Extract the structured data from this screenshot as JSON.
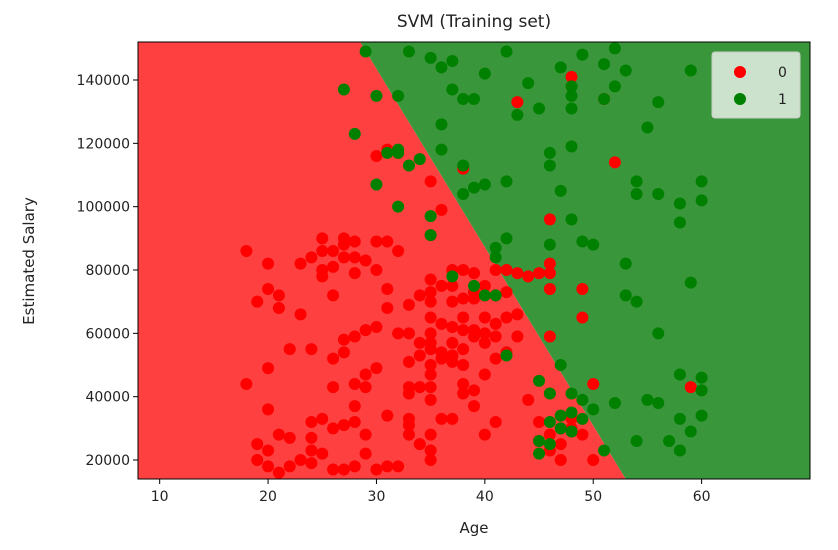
{
  "chart_data": {
    "type": "scatter",
    "title": "SVM (Training set)",
    "xlabel": "Age",
    "ylabel": "Estimated Salary",
    "xlim": [
      8,
      70
    ],
    "ylim": [
      14000,
      152000
    ],
    "xticks": [
      10,
      20,
      30,
      40,
      50,
      60
    ],
    "yticks": [
      20000,
      40000,
      60000,
      80000,
      100000,
      120000,
      140000
    ],
    "grid": false,
    "legend_position": "top-right",
    "decision_regions": {
      "classes": [
        "0",
        "1"
      ],
      "colors": [
        "#ff4040",
        "#3a963a"
      ],
      "boundary": [
        [
          28.5,
          152000
        ],
        [
          53,
          14000
        ]
      ]
    },
    "series": [
      {
        "name": "0",
        "color": "#ff0000",
        "points": [
          [
            18,
            86000
          ],
          [
            18,
            44000
          ],
          [
            19,
            70000
          ],
          [
            19,
            25000
          ],
          [
            19,
            20000
          ],
          [
            20,
            82000
          ],
          [
            20,
            74000
          ],
          [
            20,
            49000
          ],
          [
            20,
            36000
          ],
          [
            20,
            23000
          ],
          [
            20,
            18000
          ],
          [
            21,
            72000
          ],
          [
            21,
            68000
          ],
          [
            21,
            28000
          ],
          [
            21,
            16000
          ],
          [
            22,
            55000
          ],
          [
            22,
            27000
          ],
          [
            22,
            18000
          ],
          [
            23,
            82000
          ],
          [
            23,
            66000
          ],
          [
            23,
            20000
          ],
          [
            24,
            84000
          ],
          [
            24,
            55000
          ],
          [
            24,
            32000
          ],
          [
            24,
            27000
          ],
          [
            24,
            23000
          ],
          [
            24,
            19000
          ],
          [
            25,
            90000
          ],
          [
            25,
            86000
          ],
          [
            25,
            80000
          ],
          [
            25,
            78000
          ],
          [
            25,
            33000
          ],
          [
            25,
            22000
          ],
          [
            26,
            86000
          ],
          [
            26,
            81000
          ],
          [
            26,
            72000
          ],
          [
            26,
            52000
          ],
          [
            26,
            43000
          ],
          [
            26,
            30000
          ],
          [
            26,
            17000
          ],
          [
            27,
            90000
          ],
          [
            27,
            88000
          ],
          [
            27,
            84000
          ],
          [
            27,
            58000
          ],
          [
            27,
            54000
          ],
          [
            27,
            31000
          ],
          [
            27,
            17000
          ],
          [
            28,
            89000
          ],
          [
            28,
            79000
          ],
          [
            28,
            84000
          ],
          [
            28,
            59000
          ],
          [
            28,
            44000
          ],
          [
            28,
            37000
          ],
          [
            28,
            32000
          ],
          [
            28,
            18000
          ],
          [
            29,
            83000
          ],
          [
            29,
            61000
          ],
          [
            29,
            47000
          ],
          [
            29,
            43000
          ],
          [
            29,
            28000
          ],
          [
            29,
            22000
          ],
          [
            30,
            89000
          ],
          [
            30,
            80000
          ],
          [
            30,
            62000
          ],
          [
            30,
            49000
          ],
          [
            30,
            116000
          ],
          [
            30,
            17000
          ],
          [
            31,
            118000
          ],
          [
            31,
            89000
          ],
          [
            31,
            74000
          ],
          [
            31,
            68000
          ],
          [
            31,
            34000
          ],
          [
            31,
            18000
          ],
          [
            32,
            117000
          ],
          [
            32,
            86000
          ],
          [
            32,
            60000
          ],
          [
            32,
            18000
          ],
          [
            33,
            69000
          ],
          [
            33,
            60000
          ],
          [
            33,
            51000
          ],
          [
            33,
            43000
          ],
          [
            33,
            41000
          ],
          [
            33,
            33000
          ],
          [
            33,
            31000
          ],
          [
            33,
            28000
          ],
          [
            34,
            72000
          ],
          [
            34,
            57000
          ],
          [
            34,
            53000
          ],
          [
            34,
            43000
          ],
          [
            34,
            25000
          ],
          [
            35,
            108000
          ],
          [
            35,
            91000
          ],
          [
            35,
            77000
          ],
          [
            35,
            73000
          ],
          [
            35,
            70000
          ],
          [
            35,
            65000
          ],
          [
            35,
            60000
          ],
          [
            35,
            57000
          ],
          [
            35,
            55000
          ],
          [
            35,
            50000
          ],
          [
            35,
            47000
          ],
          [
            35,
            43000
          ],
          [
            35,
            39000
          ],
          [
            35,
            28000
          ],
          [
            35,
            23000
          ],
          [
            35,
            20000
          ],
          [
            36,
            99000
          ],
          [
            36,
            75000
          ],
          [
            36,
            63000
          ],
          [
            36,
            54000
          ],
          [
            36,
            52000
          ],
          [
            36,
            33000
          ],
          [
            37,
            80000
          ],
          [
            37,
            75000
          ],
          [
            37,
            70000
          ],
          [
            37,
            62000
          ],
          [
            37,
            57000
          ],
          [
            37,
            53000
          ],
          [
            37,
            51000
          ],
          [
            37,
            33000
          ],
          [
            38,
            112000
          ],
          [
            38,
            80000
          ],
          [
            38,
            71000
          ],
          [
            38,
            65000
          ],
          [
            38,
            61000
          ],
          [
            38,
            55000
          ],
          [
            38,
            50000
          ],
          [
            38,
            44000
          ],
          [
            38,
            41000
          ],
          [
            39,
            79000
          ],
          [
            39,
            73000
          ],
          [
            39,
            71000
          ],
          [
            39,
            61000
          ],
          [
            39,
            59000
          ],
          [
            39,
            42000
          ],
          [
            39,
            37000
          ],
          [
            40,
            75000
          ],
          [
            40,
            72000
          ],
          [
            40,
            65000
          ],
          [
            40,
            60000
          ],
          [
            40,
            57000
          ],
          [
            40,
            47000
          ],
          [
            40,
            28000
          ],
          [
            41,
            80000
          ],
          [
            41,
            72000
          ],
          [
            41,
            63000
          ],
          [
            41,
            59000
          ],
          [
            41,
            52000
          ],
          [
            41,
            32000
          ],
          [
            42,
            80000
          ],
          [
            42,
            73000
          ],
          [
            42,
            65000
          ],
          [
            42,
            54000
          ],
          [
            43,
            133000
          ],
          [
            43,
            79000
          ],
          [
            43,
            66000
          ],
          [
            43,
            59000
          ],
          [
            44,
            39000
          ],
          [
            44,
            78000
          ],
          [
            45,
            79000
          ],
          [
            45,
            32000
          ],
          [
            45,
            26000
          ],
          [
            46,
            96000
          ],
          [
            46,
            82000
          ],
          [
            46,
            79000
          ],
          [
            46,
            74000
          ],
          [
            46,
            59000
          ],
          [
            46,
            41000
          ],
          [
            46,
            28000
          ],
          [
            46,
            23000
          ],
          [
            47,
            30000
          ],
          [
            47,
            25000
          ],
          [
            47,
            20000
          ],
          [
            48,
            141000
          ],
          [
            48,
            30000
          ],
          [
            48,
            33000
          ],
          [
            49,
            74000
          ],
          [
            49,
            65000
          ],
          [
            49,
            28000
          ],
          [
            50,
            44000
          ],
          [
            50,
            20000
          ],
          [
            51,
            134000
          ],
          [
            52,
            114000
          ],
          [
            59,
            43000
          ]
        ]
      },
      {
        "name": "1",
        "color": "#008000",
        "points": [
          [
            27,
            137000
          ],
          [
            28,
            123000
          ],
          [
            29,
            149000
          ],
          [
            30,
            135000
          ],
          [
            30,
            107000
          ],
          [
            31,
            117000
          ],
          [
            32,
            135000
          ],
          [
            32,
            118000
          ],
          [
            32,
            117000
          ],
          [
            32,
            100000
          ],
          [
            33,
            149000
          ],
          [
            33,
            113000
          ],
          [
            34,
            115000
          ],
          [
            35,
            147000
          ],
          [
            35,
            97000
          ],
          [
            35,
            91000
          ],
          [
            36,
            144000
          ],
          [
            36,
            126000
          ],
          [
            36,
            118000
          ],
          [
            37,
            146000
          ],
          [
            37,
            137000
          ],
          [
            37,
            78000
          ],
          [
            38,
            134000
          ],
          [
            38,
            113000
          ],
          [
            38,
            104000
          ],
          [
            39,
            134000
          ],
          [
            39,
            106000
          ],
          [
            39,
            75000
          ],
          [
            40,
            142000
          ],
          [
            40,
            107000
          ],
          [
            40,
            72000
          ],
          [
            41,
            87000
          ],
          [
            41,
            84000
          ],
          [
            41,
            72000
          ],
          [
            42,
            149000
          ],
          [
            42,
            108000
          ],
          [
            42,
            90000
          ],
          [
            42,
            53000
          ],
          [
            43,
            129000
          ],
          [
            44,
            139000
          ],
          [
            45,
            131000
          ],
          [
            45,
            45000
          ],
          [
            45,
            26000
          ],
          [
            45,
            22000
          ],
          [
            46,
            117000
          ],
          [
            46,
            113000
          ],
          [
            46,
            88000
          ],
          [
            46,
            41000
          ],
          [
            46,
            32000
          ],
          [
            46,
            25000
          ],
          [
            47,
            144000
          ],
          [
            47,
            105000
          ],
          [
            47,
            50000
          ],
          [
            47,
            34000
          ],
          [
            47,
            30000
          ],
          [
            48,
            138000
          ],
          [
            48,
            135000
          ],
          [
            48,
            131000
          ],
          [
            48,
            119000
          ],
          [
            48,
            96000
          ],
          [
            48,
            41000
          ],
          [
            48,
            35000
          ],
          [
            48,
            29000
          ],
          [
            49,
            148000
          ],
          [
            49,
            89000
          ],
          [
            49,
            39000
          ],
          [
            49,
            33000
          ],
          [
            50,
            88000
          ],
          [
            50,
            36000
          ],
          [
            51,
            145000
          ],
          [
            51,
            134000
          ],
          [
            51,
            23000
          ],
          [
            52,
            150000
          ],
          [
            52,
            138000
          ],
          [
            52,
            38000
          ],
          [
            53,
            143000
          ],
          [
            53,
            82000
          ],
          [
            53,
            72000
          ],
          [
            54,
            108000
          ],
          [
            54,
            104000
          ],
          [
            54,
            70000
          ],
          [
            54,
            26000
          ],
          [
            55,
            125000
          ],
          [
            55,
            39000
          ],
          [
            56,
            133000
          ],
          [
            56,
            104000
          ],
          [
            56,
            60000
          ],
          [
            56,
            38000
          ],
          [
            57,
            26000
          ],
          [
            58,
            101000
          ],
          [
            58,
            95000
          ],
          [
            58,
            47000
          ],
          [
            58,
            33000
          ],
          [
            58,
            23000
          ],
          [
            59,
            143000
          ],
          [
            59,
            76000
          ],
          [
            59,
            29000
          ],
          [
            60,
            108000
          ],
          [
            60,
            102000
          ],
          [
            60,
            46000
          ],
          [
            60,
            42000
          ],
          [
            60,
            34000
          ]
        ]
      }
    ]
  }
}
